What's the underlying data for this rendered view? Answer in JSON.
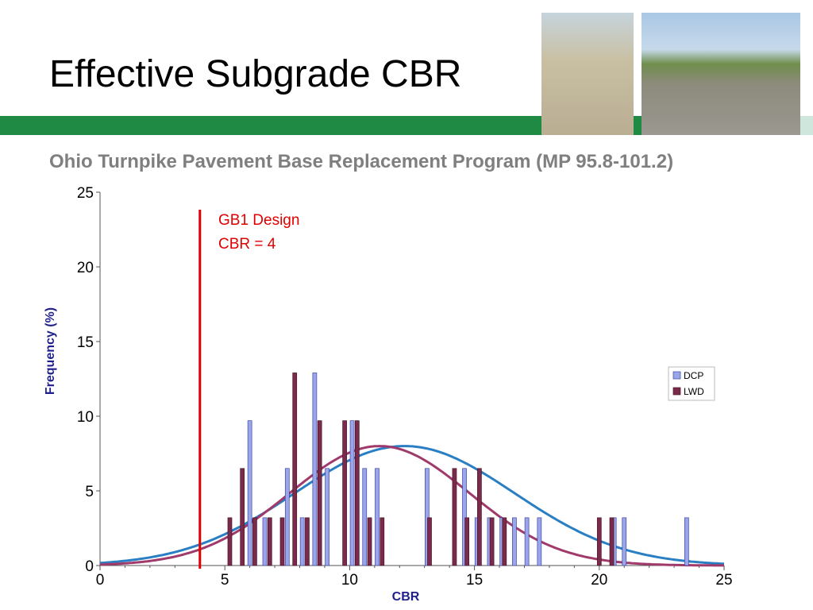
{
  "slide": {
    "title": "Effective Subgrade CBR",
    "subtitle": "Ohio Turnpike Pavement Base Replacement Program (MP 95.8-101.2)"
  },
  "colors": {
    "green_bar": "#1e8a44",
    "dcp_bar": "#9aa6e8",
    "lwd_bar": "#7a2a4a",
    "dcp_curve": "#2a7fc4",
    "lwd_curve": "#a03a6a",
    "design_line": "#e00000"
  },
  "chart_data": {
    "type": "bar",
    "xlabel": "CBR",
    "ylabel": "Frequency  (%)",
    "xlim": [
      0,
      25
    ],
    "ylim": [
      0,
      25
    ],
    "xticks": [
      0,
      5,
      10,
      15,
      20,
      25
    ],
    "yticks": [
      0,
      5,
      10,
      15,
      20,
      25
    ],
    "legend_position": "right",
    "annotation": {
      "lines": [
        "GB1 Design",
        "CBR = 4"
      ],
      "x": 4
    },
    "series": [
      {
        "name": "DCP",
        "points": [
          [
            6.0,
            9.7
          ],
          [
            6.6,
            3.2
          ],
          [
            7.5,
            6.5
          ],
          [
            8.1,
            3.2
          ],
          [
            8.6,
            12.9
          ],
          [
            9.1,
            6.5
          ],
          [
            10.1,
            9.7
          ],
          [
            10.6,
            6.5
          ],
          [
            11.1,
            6.5
          ],
          [
            13.1,
            6.5
          ],
          [
            14.6,
            6.5
          ],
          [
            15.1,
            3.2
          ],
          [
            15.6,
            3.2
          ],
          [
            16.1,
            3.2
          ],
          [
            16.6,
            3.2
          ],
          [
            17.1,
            3.2
          ],
          [
            17.6,
            3.2
          ],
          [
            20.6,
            3.2
          ],
          [
            21.0,
            3.2
          ],
          [
            23.5,
            3.2
          ]
        ]
      },
      {
        "name": "LWD",
        "points": [
          [
            5.2,
            3.2
          ],
          [
            5.7,
            6.5
          ],
          [
            6.2,
            3.2
          ],
          [
            6.8,
            3.2
          ],
          [
            7.3,
            3.2
          ],
          [
            7.8,
            12.9
          ],
          [
            8.3,
            3.2
          ],
          [
            8.8,
            9.7
          ],
          [
            9.8,
            9.7
          ],
          [
            10.3,
            9.7
          ],
          [
            10.8,
            3.2
          ],
          [
            11.3,
            3.2
          ],
          [
            13.2,
            3.2
          ],
          [
            14.2,
            6.5
          ],
          [
            14.7,
            3.2
          ],
          [
            15.2,
            6.5
          ],
          [
            15.7,
            3.2
          ],
          [
            16.2,
            3.2
          ],
          [
            20.0,
            3.2
          ],
          [
            20.5,
            3.2
          ]
        ]
      }
    ],
    "fitted_curves": [
      {
        "series": "DCP",
        "type": "normal",
        "peak": 8.0,
        "mean": 12.2
      },
      {
        "series": "LWD",
        "type": "normal",
        "peak": 8.0,
        "mean": 11.2
      }
    ]
  }
}
